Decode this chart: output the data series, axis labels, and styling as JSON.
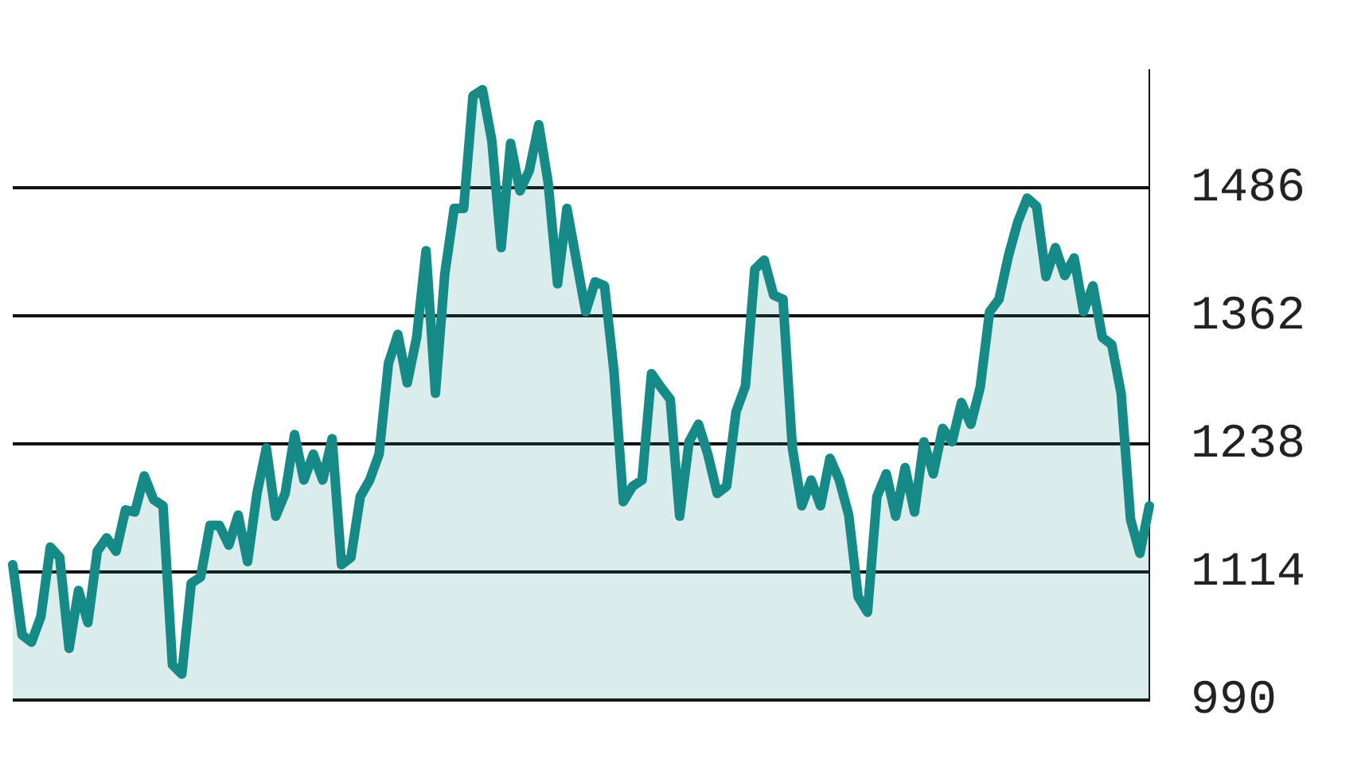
{
  "chart_data": {
    "type": "area",
    "categories": [
      null,
      null,
      null,
      null,
      null,
      null,
      null,
      null,
      null,
      null,
      null,
      null,
      null,
      null,
      null,
      null,
      null,
      null,
      null,
      null,
      null,
      null,
      null,
      null,
      null,
      null,
      null,
      null,
      null,
      null,
      null,
      null,
      null,
      null,
      null,
      null,
      null,
      null,
      null,
      null,
      null,
      null,
      null,
      null,
      null,
      null,
      null,
      null,
      null,
      null,
      null,
      null,
      null,
      null,
      null,
      null,
      null,
      null,
      null,
      null,
      null,
      null,
      null,
      null,
      null,
      null,
      null,
      null,
      null,
      null,
      null,
      null,
      null,
      null,
      null,
      null,
      null,
      null,
      null,
      null,
      null,
      null,
      null,
      null,
      null,
      null,
      null,
      null,
      null,
      null,
      null,
      null,
      null,
      null,
      null,
      null,
      null,
      null,
      null,
      null,
      null,
      null,
      null,
      null,
      null,
      null,
      null,
      null,
      null,
      null,
      null,
      null,
      null,
      null,
      null,
      null,
      null,
      null,
      null,
      null,
      null,
      null
    ],
    "series": [
      {
        "color": "#168a87",
        "values": [
          1121,
          1053,
          1046,
          1071,
          1138,
          1128,
          1040,
          1096,
          1065,
          1134,
          1147,
          1134,
          1174,
          1172,
          1207,
          1184,
          1178,
          1024,
          1015,
          1103,
          1109,
          1159,
          1159,
          1140,
          1169,
          1124,
          1190,
          1234,
          1168,
          1190,
          1247,
          1203,
          1228,
          1203,
          1243,
          1121,
          1128,
          1187,
          1203,
          1228,
          1316,
          1344,
          1297,
          1341,
          1425,
          1287,
          1403,
          1466,
          1466,
          1575,
          1581,
          1532,
          1428,
          1529,
          1483,
          1503,
          1547,
          1491,
          1393,
          1466,
          1416,
          1366,
          1395,
          1391,
          1309,
          1182,
          1197,
          1203,
          1306,
          1293,
          1281,
          1168,
          1240,
          1257,
          1228,
          1190,
          1197,
          1269,
          1294,
          1407,
          1416,
          1382,
          1378,
          1234,
          1178,
          1203,
          1178,
          1224,
          1203,
          1169,
          1090,
          1075,
          1187,
          1209,
          1168,
          1215,
          1172,
          1240,
          1209,
          1253,
          1240,
          1278,
          1257,
          1293,
          1366,
          1378,
          1420,
          1453,
          1476,
          1468,
          1400,
          1428,
          1401,
          1418,
          1366,
          1391,
          1341,
          1334,
          1287,
          1165,
          1132,
          1178
        ]
      }
    ],
    "ylim": [
      990,
      1600
    ],
    "yticks": [
      990,
      1114,
      1238,
      1362,
      1486
    ],
    "grid": "y",
    "tick_labels": "y",
    "marker": "none",
    "legend": false
  }
}
